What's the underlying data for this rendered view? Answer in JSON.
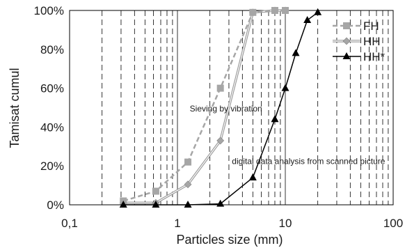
{
  "chart_data": {
    "type": "line",
    "xlabel": "Particles size (mm)",
    "ylabel": "Tamisat cumul",
    "x_scale": "log",
    "xlim": [
      0.1,
      100
    ],
    "ylim": [
      0,
      100
    ],
    "x_ticks": [
      0.1,
      1,
      10,
      100
    ],
    "x_tick_labels": [
      "0,1",
      "1",
      "10",
      "100"
    ],
    "y_ticks": [
      0,
      20,
      40,
      60,
      80,
      100
    ],
    "y_tick_labels": [
      "0%",
      "20%",
      "40%",
      "60%",
      "80%",
      "100%"
    ],
    "grid": "vertical dashed lines at log minor ticks",
    "legend_position": "top-right",
    "series": [
      {
        "name": "FH",
        "color": "#a6a6a6",
        "line_style": "dashed",
        "marker": "square",
        "x": [
          0.315,
          0.63,
          1.25,
          2.5,
          5,
          8,
          10
        ],
        "y": [
          2,
          7,
          22,
          60,
          99,
          100,
          100
        ]
      },
      {
        "name": "HH",
        "color": "#a6a6a6",
        "line_style": "double",
        "marker": "diamond",
        "x": [
          0.315,
          0.63,
          1.25,
          2.5,
          5,
          8,
          10
        ],
        "y": [
          1,
          1,
          10.5,
          33,
          99,
          100,
          100
        ]
      },
      {
        "name": "HH*",
        "color": "#000000",
        "line_style": "solid",
        "marker": "triangle",
        "x": [
          0.315,
          0.63,
          1.25,
          2.5,
          5,
          8,
          10,
          12.5,
          16,
          20
        ],
        "y": [
          0,
          0,
          0,
          0.5,
          14,
          44,
          60,
          78,
          95,
          99
        ]
      }
    ],
    "annotations": [
      {
        "text": "Sieving by vibration",
        "x": 1.3,
        "y": 48
      },
      {
        "text": "digital data analysis from scanned picture",
        "x": 3.2,
        "y": 21
      }
    ]
  }
}
